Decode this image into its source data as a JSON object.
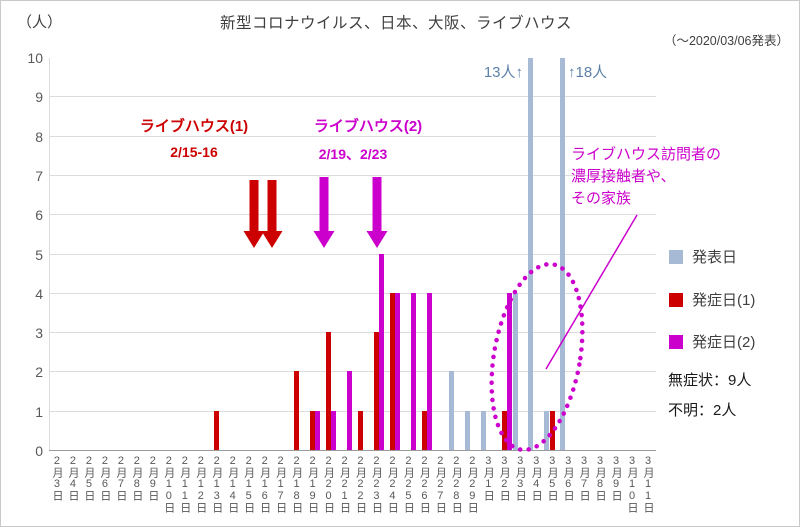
{
  "page": {
    "y_unit_label": "（人）",
    "title": "新型コロナウイルス、日本、大阪、ライブハウス",
    "subtitle": "（～2020/03/06発表）"
  },
  "annotations": {
    "livehouse1": {
      "label": "ライブハウス(1)",
      "dates": "2/15-16"
    },
    "livehouse2": {
      "label": "ライブハウス(2)",
      "dates": "2/19、2/23"
    },
    "contacts_note": "ライブハウス訪問者の\n濃厚接触者や、\nその家族",
    "peak13": "13人↑",
    "peak18": "↑18人"
  },
  "legend": {
    "items": [
      {
        "label": "発表日",
        "color": "#a6bad6"
      },
      {
        "label": "発症日(1)",
        "color": "#cc0000"
      },
      {
        "label": "発症日(2)",
        "color": "#cc00cc"
      }
    ],
    "notes": [
      "無症状：9人",
      "不明：2人"
    ]
  },
  "colors": {
    "announced": "#a6bad6",
    "onset1": "#cc0000",
    "onset2": "#cc00cc",
    "peak_label": "#5e81a8",
    "grid": "#dcdcdc",
    "axis_text": "#595959"
  },
  "chart_data": {
    "type": "bar",
    "bar_layout": "grouped",
    "title": "新型コロナウイルス、日本、大阪、ライブハウス（～2020/03/06発表）",
    "xlabel": "",
    "ylabel": "（人）",
    "ylim": [
      0,
      10
    ],
    "ytick_interval": 1,
    "grid": true,
    "legend_position": "right",
    "categories": [
      "2月3日",
      "2月4日",
      "2月5日",
      "2月6日",
      "2月7日",
      "2月8日",
      "2月9日",
      "2月10日",
      "2月11日",
      "2月12日",
      "2月13日",
      "2月14日",
      "2月15日",
      "2月16日",
      "2月17日",
      "2月18日",
      "2月19日",
      "2月20日",
      "2月21日",
      "2月22日",
      "2月23日",
      "2月24日",
      "2月25日",
      "2月26日",
      "2月27日",
      "2月28日",
      "2月29日",
      "3月1日",
      "3月2日",
      "3月3日",
      "3月4日",
      "3月5日",
      "3月6日",
      "3月7日",
      "3月8日",
      "3月9日",
      "3月10日",
      "3月11日"
    ],
    "series": [
      {
        "name": "発表日",
        "color": "#a6bad6",
        "values": [
          0,
          0,
          0,
          0,
          0,
          0,
          0,
          0,
          0,
          0,
          0,
          0,
          0,
          0,
          0,
          0,
          0,
          0,
          0,
          0,
          0,
          0,
          0,
          0,
          0,
          2,
          1,
          1,
          0,
          4,
          13,
          1,
          18,
          0,
          0,
          0,
          0,
          0
        ]
      },
      {
        "name": "発症日(1)",
        "color": "#cc0000",
        "values": [
          0,
          0,
          0,
          0,
          0,
          0,
          0,
          0,
          0,
          0,
          1,
          0,
          0,
          0,
          0,
          2,
          1,
          3,
          0,
          1,
          3,
          4,
          0,
          1,
          0,
          0,
          0,
          0,
          1,
          0,
          0,
          1,
          0,
          0,
          0,
          0,
          0,
          0
        ]
      },
      {
        "name": "発症日(2)",
        "color": "#cc00cc",
        "values": [
          0,
          0,
          0,
          0,
          0,
          0,
          0,
          0,
          0,
          0,
          0,
          0,
          0,
          0,
          0,
          0,
          1,
          1,
          2,
          0,
          5,
          4,
          4,
          4,
          0,
          0,
          0,
          0,
          4,
          0,
          0,
          0,
          0,
          0,
          0,
          0,
          0,
          0
        ]
      }
    ],
    "annotations": [
      {
        "text": "ライブハウス(1) 2/15-16",
        "color": "#cc0000",
        "arrows_at": [
          "2月15日",
          "2月16日"
        ]
      },
      {
        "text": "ライブハウス(2) 2/19、2/23",
        "color": "#cc00cc",
        "arrows_at": [
          "2月19日",
          "2月23日"
        ]
      },
      {
        "text": "ライブハウス訪問者の濃厚接触者や、その家族",
        "color": "#cc00cc",
        "target": "3月2日-3月5日"
      },
      {
        "text": "13人↑",
        "target": "3月4日",
        "value": 13
      },
      {
        "text": "↑18人",
        "target": "3月6日",
        "value": 18
      }
    ],
    "side_notes": [
      "無症状：9人",
      "不明：2人"
    ]
  }
}
